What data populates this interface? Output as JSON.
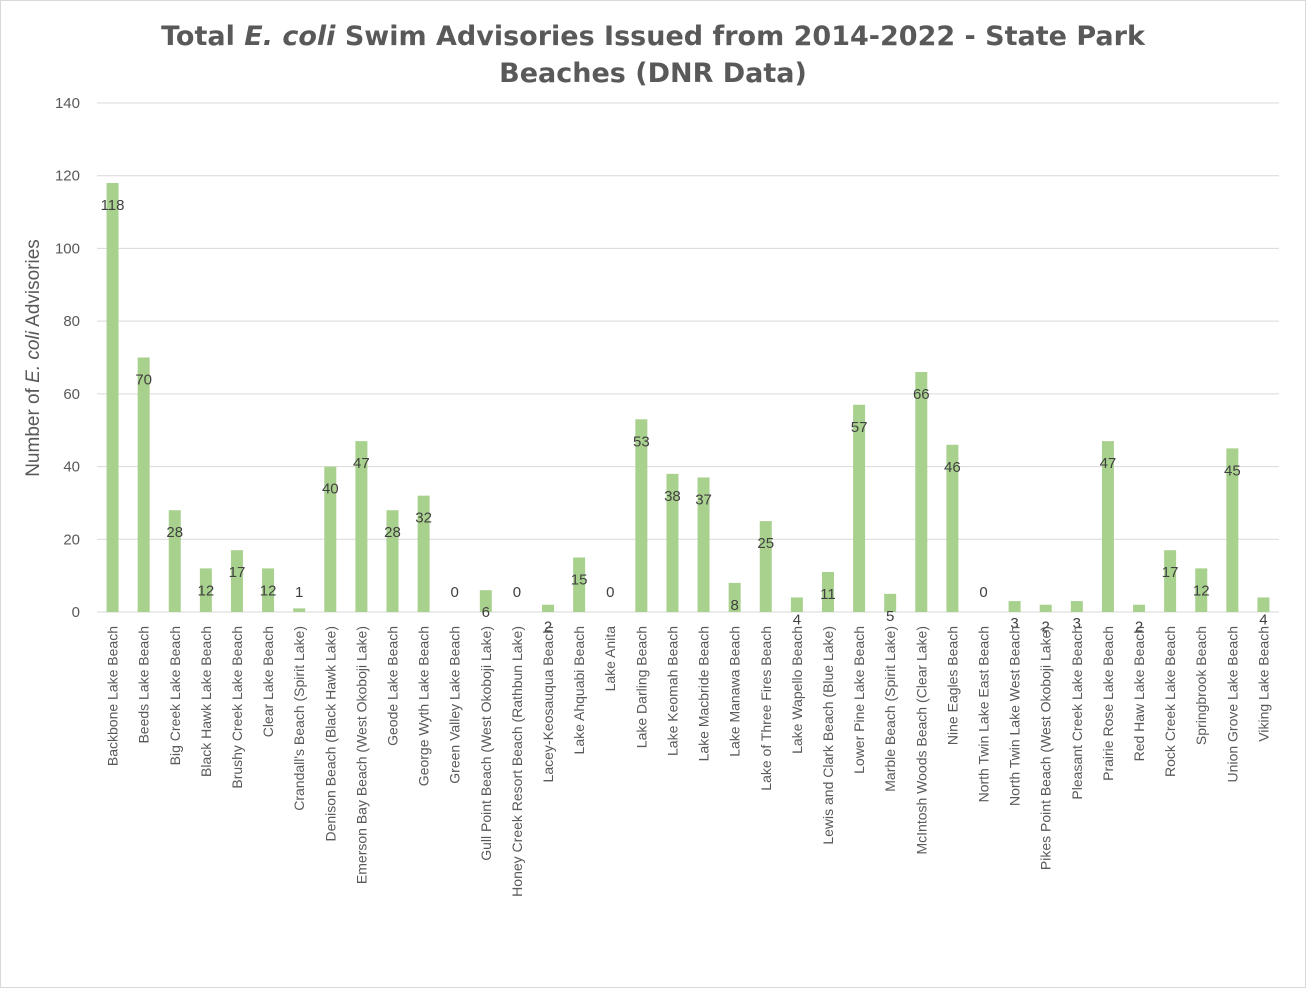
{
  "chart_data": {
    "type": "bar",
    "title_parts": [
      "Total ",
      "E. coli",
      " Swim Advisories Issued from 2014-2022 - State Park",
      "Beaches (DNR Data)"
    ],
    "ylabel_parts": [
      "Number of ",
      "E. coli",
      " Advisories"
    ],
    "xlabel": "",
    "ylim": [
      0,
      140
    ],
    "yticks": [
      0,
      20,
      40,
      60,
      80,
      100,
      120,
      140
    ],
    "grid": true,
    "legend": "none",
    "bar_color": "#a9d18e",
    "grid_color": "#d9d9d9",
    "categories": [
      "Backbone Lake Beach",
      "Beeds Lake Beach",
      "Big Creek Lake Beach",
      "Black Hawk Lake Beach",
      "Brushy Creek Lake Beach",
      "Clear Lake Beach",
      "Crandall's Beach (Spirit Lake)",
      "Denison Beach (Black Hawk Lake)",
      "Emerson Bay Beach (West Okoboji Lake)",
      "Geode Lake Beach",
      "George Wyth Lake Beach",
      "Green Valley Lake Beach",
      "Gull Point Beach (West Okoboji Lake)",
      "Honey Creek Resort Beach (Rathbun Lake)",
      "Lacey-Keosauqua Beach",
      "Lake Ahquabi Beach",
      "Lake Anita",
      "Lake Darling Beach",
      "Lake Keomah Beach",
      "Lake Macbride Beach",
      "Lake Manawa Beach",
      "Lake of Three Fires Beach",
      "Lake Wapello Beach",
      "Lewis and Clark Beach (Blue Lake)",
      "Lower Pine Lake Beach",
      "Marble Beach (Spirit Lake)",
      "McIntosh Woods Beach (Clear Lake)",
      "Nine Eagles Beach",
      "North Twin Lake East Beach",
      "North Twin Lake West Beach",
      "Pikes Point Beach (West Okoboji Lake)",
      "Pleasant Creek Lake Beach",
      "Prairie Rose Lake Beach",
      "Red Haw Lake Beach",
      "Rock Creek Lake Beach",
      "Springbrook Beach",
      "Union Grove Lake Beach",
      "Viking Lake Beach"
    ],
    "values": [
      118,
      70,
      28,
      12,
      17,
      12,
      1,
      40,
      47,
      28,
      32,
      0,
      6,
      0,
      2,
      15,
      0,
      53,
      38,
      37,
      8,
      25,
      4,
      11,
      57,
      5,
      66,
      46,
      0,
      3,
      2,
      3,
      47,
      2,
      17,
      12,
      45,
      4
    ]
  }
}
